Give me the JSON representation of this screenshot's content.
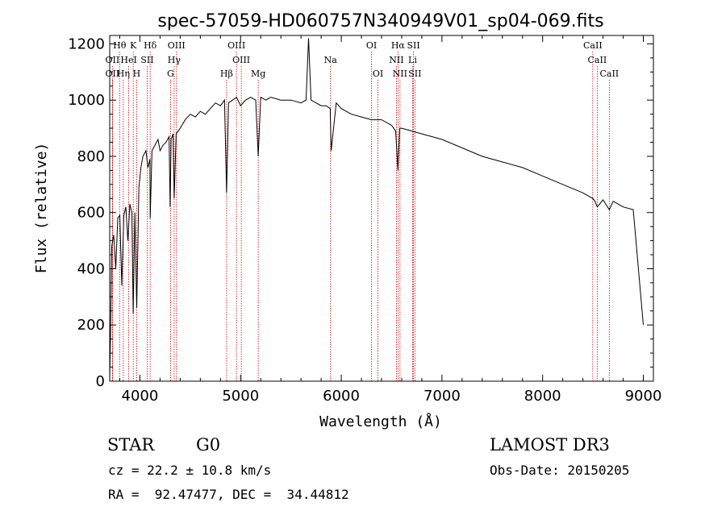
{
  "chart_data": {
    "type": "line",
    "title": "spec-57059-HD060757N340949V01_sp04-069.fits",
    "xlabel": "Wavelength (Å)",
    "ylabel": "Flux (relative)",
    "xlim": [
      3700,
      9100
    ],
    "ylim": [
      0,
      1230
    ],
    "xticks": [
      4000,
      5000,
      6000,
      7000,
      8000,
      9000
    ],
    "yticks": [
      0,
      200,
      400,
      600,
      800,
      1000,
      1200
    ],
    "grid": false,
    "series": [
      {
        "x": [
          3700,
          3710,
          3720,
          3740,
          3760,
          3780,
          3800,
          3820,
          3840,
          3860,
          3880,
          3900,
          3920,
          3933,
          3950,
          3968,
          3990,
          4010,
          4030,
          4060,
          4080,
          4100,
          4102,
          4120,
          4150,
          4180,
          4200,
          4230,
          4260,
          4290,
          4300,
          4310,
          4330,
          4340,
          4360,
          4400,
          4450,
          4500,
          4550,
          4600,
          4650,
          4700,
          4750,
          4800,
          4840,
          4861,
          4880,
          4920,
          4960,
          5000,
          5050,
          5100,
          5150,
          5175,
          5200,
          5250,
          5300,
          5400,
          5500,
          5600,
          5650,
          5675,
          5700,
          5750,
          5800,
          5850,
          5890,
          5900,
          5950,
          6000,
          6100,
          6200,
          6300,
          6400,
          6500,
          6540,
          6563,
          6580,
          6600,
          6700,
          6800,
          7000,
          7200,
          7400,
          7600,
          7800,
          8000,
          8200,
          8400,
          8498,
          8520,
          8542,
          8600,
          8662,
          8700,
          8800,
          8900,
          9000
        ],
        "y": [
          5,
          200,
          480,
          520,
          400,
          580,
          590,
          340,
          590,
          620,
          500,
          630,
          600,
          240,
          600,
          260,
          690,
          760,
          800,
          820,
          760,
          790,
          580,
          820,
          840,
          860,
          820,
          840,
          850,
          870,
          620,
          860,
          880,
          650,
          880,
          900,
          930,
          950,
          940,
          960,
          950,
          970,
          990,
          980,
          1000,
          670,
          990,
          1000,
          1010,
          980,
          1000,
          1010,
          1000,
          800,
          1010,
          1000,
          1010,
          1000,
          1000,
          990,
          1000,
          1220,
          1000,
          990,
          980,
          980,
          970,
          820,
          990,
          970,
          950,
          940,
          930,
          930,
          910,
          890,
          750,
          900,
          900,
          890,
          880,
          860,
          830,
          800,
          780,
          760,
          730,
          700,
          670,
          650,
          640,
          620,
          645,
          610,
          640,
          620,
          610,
          200
        ]
      }
    ],
    "line_markers": [
      {
        "label": "Hθ",
        "x": 3798,
        "row": 1
      },
      {
        "label": "K",
        "x": 3934,
        "row": 1
      },
      {
        "label": "Hδ",
        "x": 4102,
        "row": 1
      },
      {
        "label": "OIII",
        "x": 4363,
        "row": 1
      },
      {
        "label": "OIII",
        "x": 4959,
        "row": 1
      },
      {
        "label": "OI",
        "x": 6300,
        "row": 1
      },
      {
        "label": "Hα",
        "x": 6563,
        "row": 1
      },
      {
        "label": "SII",
        "x": 6717,
        "row": 1
      },
      {
        "label": "CaII",
        "x": 8498,
        "row": 1
      },
      {
        "label": "OII",
        "x": 3727,
        "row": 2
      },
      {
        "label": "HeI",
        "x": 3889,
        "row": 2
      },
      {
        "label": "SII",
        "x": 4072,
        "row": 2
      },
      {
        "label": "Hγ",
        "x": 4340,
        "row": 2
      },
      {
        "label": "OIII",
        "x": 5007,
        "row": 2
      },
      {
        "label": "Na",
        "x": 5893,
        "row": 2
      },
      {
        "label": "NII",
        "x": 6548,
        "row": 2
      },
      {
        "label": "Li",
        "x": 6708,
        "row": 2
      },
      {
        "label": "CaII",
        "x": 8542,
        "row": 2
      },
      {
        "label": "OII",
        "x": 3727,
        "row": 3
      },
      {
        "label": "Hη",
        "x": 3835,
        "row": 3
      },
      {
        "label": "H",
        "x": 3968,
        "row": 3
      },
      {
        "label": "G",
        "x": 4304,
        "row": 3
      },
      {
        "label": "Hβ",
        "x": 4861,
        "row": 3
      },
      {
        "label": "Mg",
        "x": 5175,
        "row": 3
      },
      {
        "label": "OI",
        "x": 6364,
        "row": 3
      },
      {
        "label": "NII",
        "x": 6583,
        "row": 3
      },
      {
        "label": "SII",
        "x": 6731,
        "row": 3
      },
      {
        "label": "CaII",
        "x": 8662,
        "row": 3
      }
    ]
  },
  "info": {
    "object_type": "STAR",
    "subclass": "G0",
    "survey": "LAMOST DR3",
    "cz": "cz = 22.2 ± 10.8 km/s",
    "obs_date": "Obs-Date: 20150205",
    "radec": "RA =  92.47477, DEC =  34.44812"
  },
  "colors": {
    "spectrum": "#000000",
    "marker_line": "#cc0000",
    "axis": "#000000"
  }
}
